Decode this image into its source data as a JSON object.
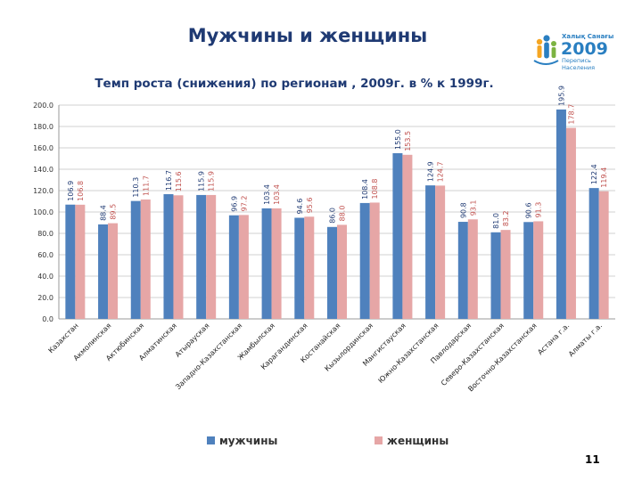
{
  "header": {
    "title": "Мужчины и женщины",
    "subtitle": "Темп роста (снижения) по регионам , 2009г. в % к 1999г."
  },
  "logo": {
    "line1": "Халық Санағы",
    "year": "2009",
    "line2": "Перепись",
    "line3": "Населения"
  },
  "page_number": "11",
  "colors": {
    "men": "#4f81bd",
    "women": "#e6a6a6",
    "men_label": "#1f3a73",
    "women_label": "#c0504d",
    "grid": "#d0d0d0"
  },
  "chart_data": {
    "type": "bar",
    "categories": [
      "Казахстан",
      "Акмолинская",
      "Актюбинская",
      "Алматинская",
      "Атырауская",
      "Западно-Казахстанская",
      "Жамбылская",
      "Карагандинская",
      "Костанайская",
      "Кызылординская",
      "Мангистауская",
      "Южно-Казахстанская",
      "Павлодарская",
      "Северо-Казахстанская",
      "Восточно-Казахстанская",
      "Астана г.а.",
      "Алматы г.а."
    ],
    "series": [
      {
        "name": "мужчины",
        "values": [
          106.9,
          88.4,
          110.3,
          116.7,
          115.9,
          96.9,
          103.4,
          94.6,
          86.0,
          108.4,
          155.0,
          124.9,
          90.8,
          81.0,
          90.6,
          195.9,
          122.4
        ]
      },
      {
        "name": "женщины",
        "values": [
          106.8,
          89.5,
          111.7,
          115.6,
          115.9,
          97.2,
          103.4,
          95.6,
          88.0,
          108.8,
          153.5,
          124.7,
          93.1,
          83.2,
          91.3,
          178.7,
          119.4
        ]
      }
    ],
    "value_labels": [
      [
        "106.9",
        "88.4",
        "110.3",
        "116.7",
        "115.9",
        "96.9",
        "103.4",
        "94.6",
        "86.0",
        "108.4",
        "155.0",
        "124.9",
        "90.8",
        "81.0",
        "90.6",
        "195.9",
        "122.4"
      ],
      [
        "106.8",
        "89.5",
        "111.7",
        "115.6",
        "115.9",
        "97.2",
        "103.4",
        "95.6",
        "88.0",
        "108.8",
        "153.5",
        "124.7",
        "93.1",
        "83.2",
        "91.3",
        "178.7",
        "119.4"
      ]
    ],
    "yticks": [
      "0.0",
      "20.0",
      "40.0",
      "60.0",
      "80.0",
      "100.0",
      "120.0",
      "140.0",
      "160.0",
      "180.0",
      "200.0"
    ],
    "ylim": [
      0,
      200
    ],
    "grid": true,
    "legend_position": "bottom"
  }
}
